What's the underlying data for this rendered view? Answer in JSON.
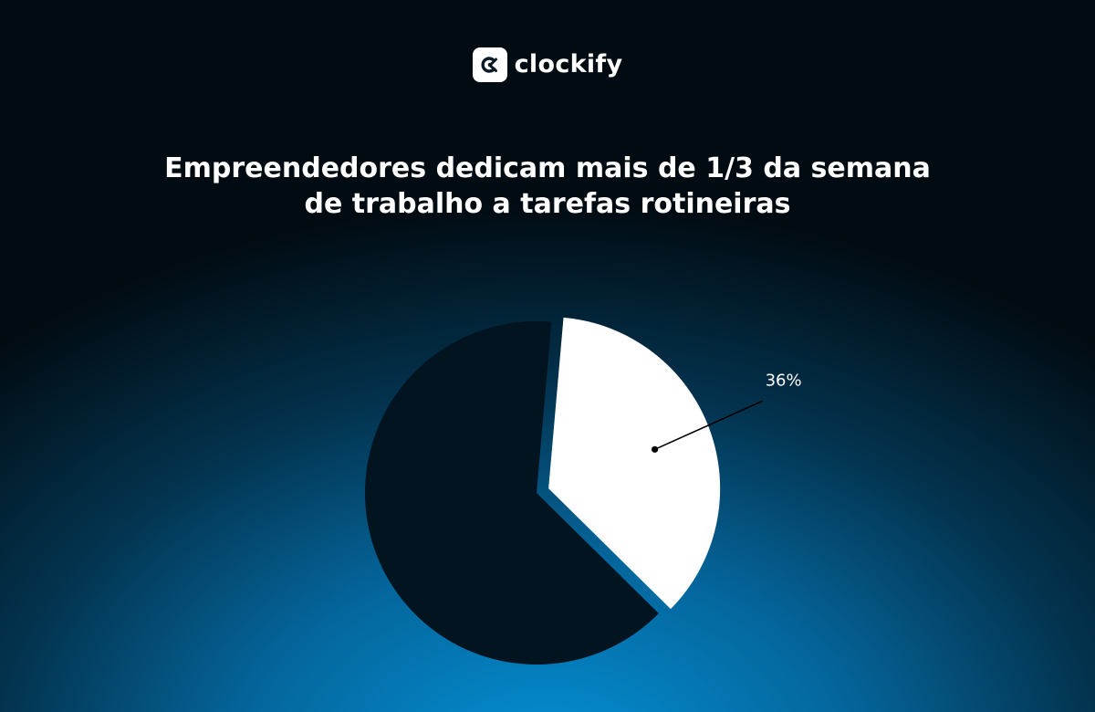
{
  "brand": {
    "name": "clockify",
    "icon": "clockify-logo-icon"
  },
  "chart_data": {
    "type": "pie",
    "title": "Empreendedores dedicam mais de 1/3 da semana de trabalho a tarefas rotineiras",
    "title_lines": [
      "Empreendedores dedicam mais de 1/3 da semana",
      "de trabalho a tarefas rotineiras"
    ],
    "slices": [
      {
        "value": 36,
        "label": "36%",
        "color": "#ffffff",
        "exploded": true
      },
      {
        "value": 64,
        "label": "",
        "color": "#01141f",
        "exploded": false
      }
    ]
  }
}
